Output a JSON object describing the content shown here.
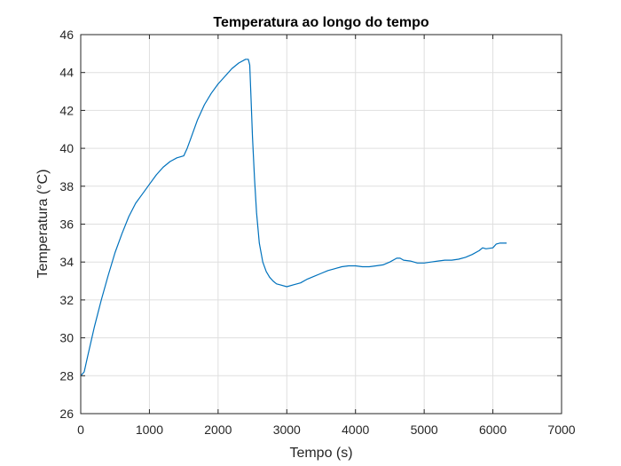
{
  "chart_data": {
    "type": "line",
    "title": "Temperatura ao longo do tempo",
    "xlabel": "Tempo (s)",
    "ylabel": "Temperatura (°C)",
    "xlim": [
      0,
      7000
    ],
    "ylim": [
      26,
      46
    ],
    "xticks": [
      0,
      1000,
      2000,
      3000,
      4000,
      5000,
      6000,
      7000
    ],
    "yticks": [
      26,
      28,
      30,
      32,
      34,
      36,
      38,
      40,
      42,
      44,
      46
    ],
    "grid": true,
    "series": [
      {
        "color": "#0072bd",
        "x": [
          0,
          50,
          100,
          200,
          300,
          400,
          500,
          600,
          700,
          800,
          900,
          1000,
          1100,
          1200,
          1300,
          1400,
          1500,
          1550,
          1600,
          1700,
          1800,
          1900,
          2000,
          2100,
          2200,
          2300,
          2400,
          2440,
          2460,
          2480,
          2500,
          2530,
          2560,
          2600,
          2650,
          2700,
          2750,
          2800,
          2850,
          2900,
          3000,
          3100,
          3200,
          3300,
          3400,
          3500,
          3600,
          3700,
          3800,
          3900,
          4000,
          4100,
          4200,
          4300,
          4400,
          4500,
          4600,
          4650,
          4700,
          4800,
          4900,
          5000,
          5100,
          5200,
          5300,
          5400,
          5500,
          5600,
          5700,
          5800,
          5850,
          5900,
          6000,
          6050,
          6100,
          6200
        ],
        "y": [
          28.0,
          28.2,
          29.0,
          30.6,
          32.0,
          33.3,
          34.5,
          35.5,
          36.4,
          37.1,
          37.6,
          38.1,
          38.6,
          39.0,
          39.3,
          39.5,
          39.6,
          40.0,
          40.5,
          41.5,
          42.3,
          42.9,
          43.4,
          43.8,
          44.2,
          44.5,
          44.7,
          44.7,
          44.4,
          42.6,
          40.6,
          38.4,
          36.6,
          35.0,
          34.0,
          33.5,
          33.2,
          33.0,
          32.85,
          32.8,
          32.7,
          32.8,
          32.9,
          33.1,
          33.25,
          33.4,
          33.55,
          33.65,
          33.75,
          33.8,
          33.8,
          33.75,
          33.75,
          33.8,
          33.85,
          34.0,
          34.2,
          34.2,
          34.1,
          34.05,
          33.95,
          33.95,
          34.0,
          34.05,
          34.1,
          34.1,
          34.15,
          34.25,
          34.4,
          34.6,
          34.75,
          34.7,
          34.75,
          34.95,
          35.0,
          35.0
        ]
      }
    ]
  }
}
